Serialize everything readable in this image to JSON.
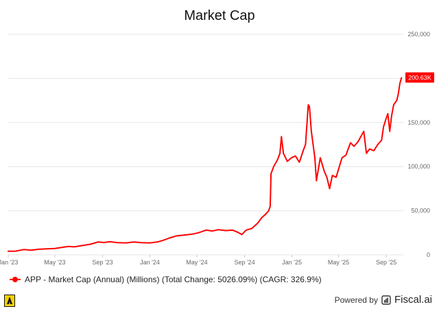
{
  "title": "Market Cap",
  "legend_label": "APP - Market Cap (Annual) (Millions) (Total Change: 5026.09%) (CAGR: 326.9%)",
  "footer": {
    "powered_by": "Powered by",
    "brand": "Fiscal.ai"
  },
  "colors": {
    "series": "#ff0000",
    "grid": "#e6e6e6",
    "axis_text": "#666666",
    "badge_bg": "#ff0000",
    "badge_text": "#ffffff"
  },
  "icons": [
    "app-logo-icon",
    "fiscal-logo-icon"
  ],
  "chart_data": {
    "type": "line",
    "title": "Market Cap",
    "xlabel": "",
    "ylabel": "",
    "y_axis_side": "right",
    "grid": "horizontal",
    "legend_placement": "bottom-left",
    "ylim": [
      0,
      250000
    ],
    "y_ticks": [
      0,
      50000,
      100000,
      150000,
      200000,
      250000
    ],
    "y_tick_labels": [
      "0",
      "50,000",
      "100,000",
      "150,000",
      "200,000",
      "250,000"
    ],
    "xlim": [
      "2023-01-01",
      "2025-10-15"
    ],
    "x_ticks": [
      "2023-01-01",
      "2023-05-01",
      "2023-09-01",
      "2024-01-01",
      "2024-05-01",
      "2024-09-01",
      "2025-01-01",
      "2025-05-01",
      "2025-09-01"
    ],
    "x_tick_labels": [
      "Jan '23",
      "May '23",
      "Sep '23",
      "Jan '24",
      "May '24",
      "Sep '24",
      "Jan '25",
      "May '25",
      "Sep '25"
    ],
    "last_value_label": "200.63K",
    "series": [
      {
        "name": "APP - Market Cap (Annual) (Millions)",
        "points": [
          [
            "2023-01-01",
            4000
          ],
          [
            "2023-01-20",
            4200
          ],
          [
            "2023-02-10",
            6000
          ],
          [
            "2023-03-01",
            5200
          ],
          [
            "2023-03-20",
            6300
          ],
          [
            "2023-04-10",
            6800
          ],
          [
            "2023-05-01",
            7200
          ],
          [
            "2023-05-20",
            8500
          ],
          [
            "2023-06-05",
            9500
          ],
          [
            "2023-06-20",
            9000
          ],
          [
            "2023-07-10",
            10500
          ],
          [
            "2023-08-01",
            12000
          ],
          [
            "2023-08-20",
            14500
          ],
          [
            "2023-09-05",
            14000
          ],
          [
            "2023-09-20",
            14800
          ],
          [
            "2023-10-10",
            13800
          ],
          [
            "2023-11-01",
            13500
          ],
          [
            "2023-11-20",
            14500
          ],
          [
            "2023-12-10",
            13800
          ],
          [
            "2024-01-01",
            13500
          ],
          [
            "2024-01-20",
            14500
          ],
          [
            "2024-02-05",
            16500
          ],
          [
            "2024-02-20",
            19000
          ],
          [
            "2024-03-10",
            21500
          ],
          [
            "2024-04-01",
            22500
          ],
          [
            "2024-04-20",
            23500
          ],
          [
            "2024-05-05",
            25000
          ],
          [
            "2024-05-25",
            28000
          ],
          [
            "2024-06-10",
            27000
          ],
          [
            "2024-06-25",
            28500
          ],
          [
            "2024-07-15",
            27500
          ],
          [
            "2024-08-01",
            28000
          ],
          [
            "2024-08-15",
            25500
          ],
          [
            "2024-08-25",
            23000
          ],
          [
            "2024-09-05",
            28000
          ],
          [
            "2024-09-20",
            30000
          ],
          [
            "2024-10-05",
            36000
          ],
          [
            "2024-10-15",
            42000
          ],
          [
            "2024-10-25",
            46000
          ],
          [
            "2024-11-02",
            50000
          ],
          [
            "2024-11-06",
            55000
          ],
          [
            "2024-11-08",
            92000
          ],
          [
            "2024-11-15",
            100000
          ],
          [
            "2024-11-25",
            108000
          ],
          [
            "2024-12-01",
            115000
          ],
          [
            "2024-12-05",
            134000
          ],
          [
            "2024-12-10",
            115000
          ],
          [
            "2024-12-20",
            106000
          ],
          [
            "2024-12-31",
            110000
          ],
          [
            "2025-01-10",
            112000
          ],
          [
            "2025-01-20",
            105000
          ],
          [
            "2025-01-30",
            118000
          ],
          [
            "2025-02-05",
            125000
          ],
          [
            "2025-02-12",
            170000
          ],
          [
            "2025-02-15",
            168000
          ],
          [
            "2025-02-20",
            140000
          ],
          [
            "2025-03-01",
            110000
          ],
          [
            "2025-03-05",
            84000
          ],
          [
            "2025-03-15",
            110000
          ],
          [
            "2025-03-25",
            95000
          ],
          [
            "2025-04-01",
            88000
          ],
          [
            "2025-04-08",
            75000
          ],
          [
            "2025-04-15",
            90000
          ],
          [
            "2025-04-25",
            88000
          ],
          [
            "2025-05-01",
            97000
          ],
          [
            "2025-05-10",
            110000
          ],
          [
            "2025-05-20",
            113000
          ],
          [
            "2025-06-01",
            127000
          ],
          [
            "2025-06-10",
            123000
          ],
          [
            "2025-06-20",
            128000
          ],
          [
            "2025-07-05",
            140000
          ],
          [
            "2025-07-12",
            115000
          ],
          [
            "2025-07-20",
            120000
          ],
          [
            "2025-07-31",
            118000
          ],
          [
            "2025-08-10",
            125000
          ],
          [
            "2025-08-20",
            130000
          ],
          [
            "2025-08-25",
            145000
          ],
          [
            "2025-09-01",
            155000
          ],
          [
            "2025-09-05",
            160000
          ],
          [
            "2025-09-10",
            140000
          ],
          [
            "2025-09-15",
            158000
          ],
          [
            "2025-09-20",
            170000
          ],
          [
            "2025-09-28",
            175000
          ],
          [
            "2025-10-02",
            182000
          ],
          [
            "2025-10-06",
            194000
          ],
          [
            "2025-10-10",
            200630
          ]
        ]
      }
    ]
  }
}
